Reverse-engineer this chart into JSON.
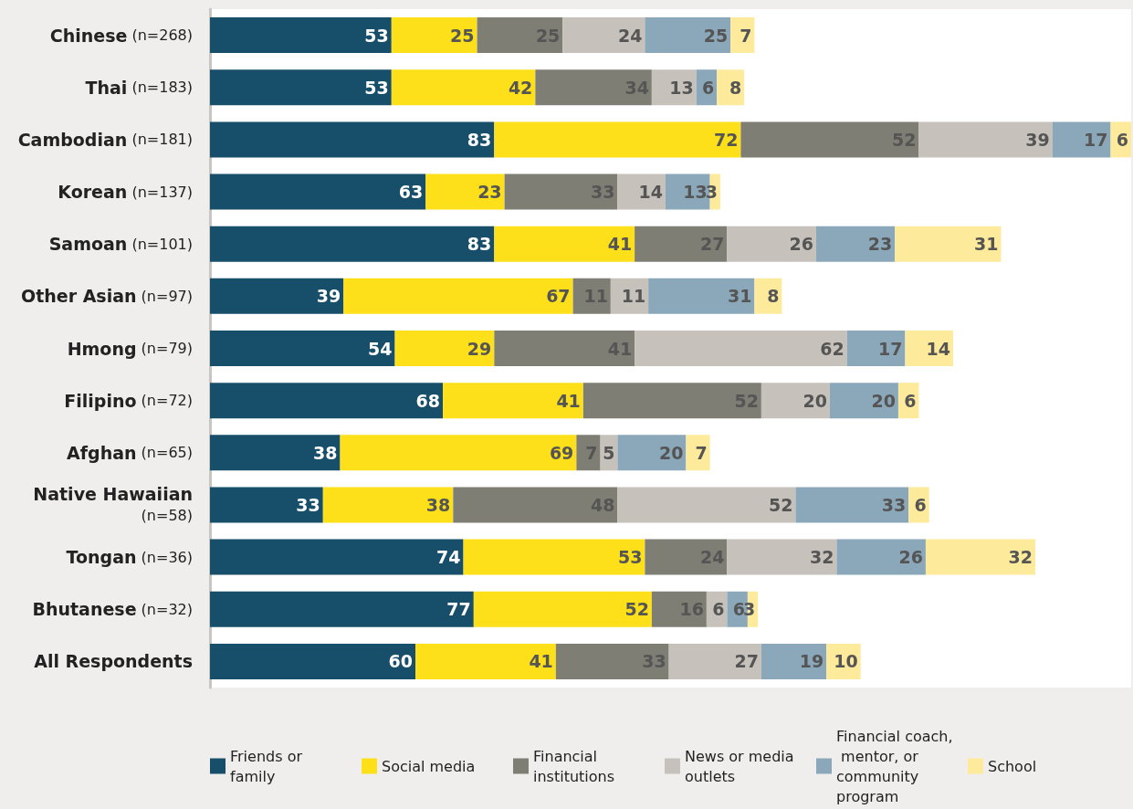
{
  "chart_data": {
    "type": "bar",
    "orientation": "horizontal",
    "stacked": true,
    "data_labels": true,
    "legend": "bottom",
    "categories": [
      "Chinese (n=268)",
      "Thai (n=183)",
      "Cambodian (n=181)",
      "Korean (n=137)",
      "Samoan (n=101)",
      "Other Asian (n=97)",
      "Hmong (n=79)",
      "Filipino (n=72)",
      "Afghan (n=65)",
      "Native Hawaiian (n=58)",
      "Tongan (n=36)",
      "Bhutanese (n=32)",
      "All Respondents"
    ],
    "series": [
      {
        "name": "Friends or family",
        "color": "#174f6b",
        "values": [
          53,
          53,
          83,
          63,
          83,
          39,
          54,
          68,
          38,
          33,
          74,
          77,
          60
        ]
      },
      {
        "name": "Social media",
        "color": "#fde01a",
        "values": [
          25,
          42,
          72,
          23,
          41,
          67,
          29,
          41,
          69,
          38,
          53,
          52,
          41
        ]
      },
      {
        "name": "Financial institutions",
        "color": "#7f7e74",
        "values": [
          25,
          34,
          52,
          33,
          27,
          11,
          41,
          52,
          7,
          48,
          24,
          16,
          33
        ]
      },
      {
        "name": "News or media outlets",
        "color": "#c6c2bb",
        "values": [
          24,
          13,
          39,
          14,
          26,
          11,
          62,
          20,
          5,
          52,
          32,
          6,
          27
        ]
      },
      {
        "name": "Financial coach, mentor, or community program",
        "color": "#8ba8ba",
        "values": [
          25,
          6,
          17,
          13,
          23,
          31,
          17,
          20,
          20,
          33,
          26,
          6,
          19
        ]
      },
      {
        "name": "School",
        "color": "#feea9b",
        "values": [
          7,
          8,
          6,
          3,
          31,
          8,
          14,
          6,
          7,
          6,
          32,
          3,
          10
        ]
      }
    ]
  }
}
